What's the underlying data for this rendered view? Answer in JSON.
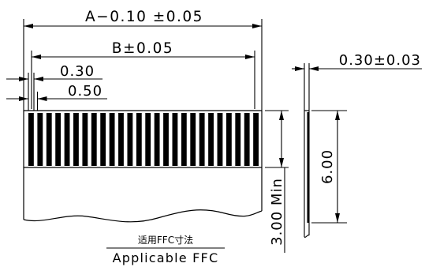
{
  "dimensions": {
    "a_width": "A−0.10 ±0.05",
    "b_width": "B±0.05",
    "conductor_width": "0.30",
    "pitch": "0.50",
    "thickness": "0.30±0.03",
    "exposed_length": "3.00 Min",
    "stiffener_length": "6.00"
  },
  "caption": {
    "chinese": "适用FFC寸法",
    "english": "Applicable FFC"
  }
}
